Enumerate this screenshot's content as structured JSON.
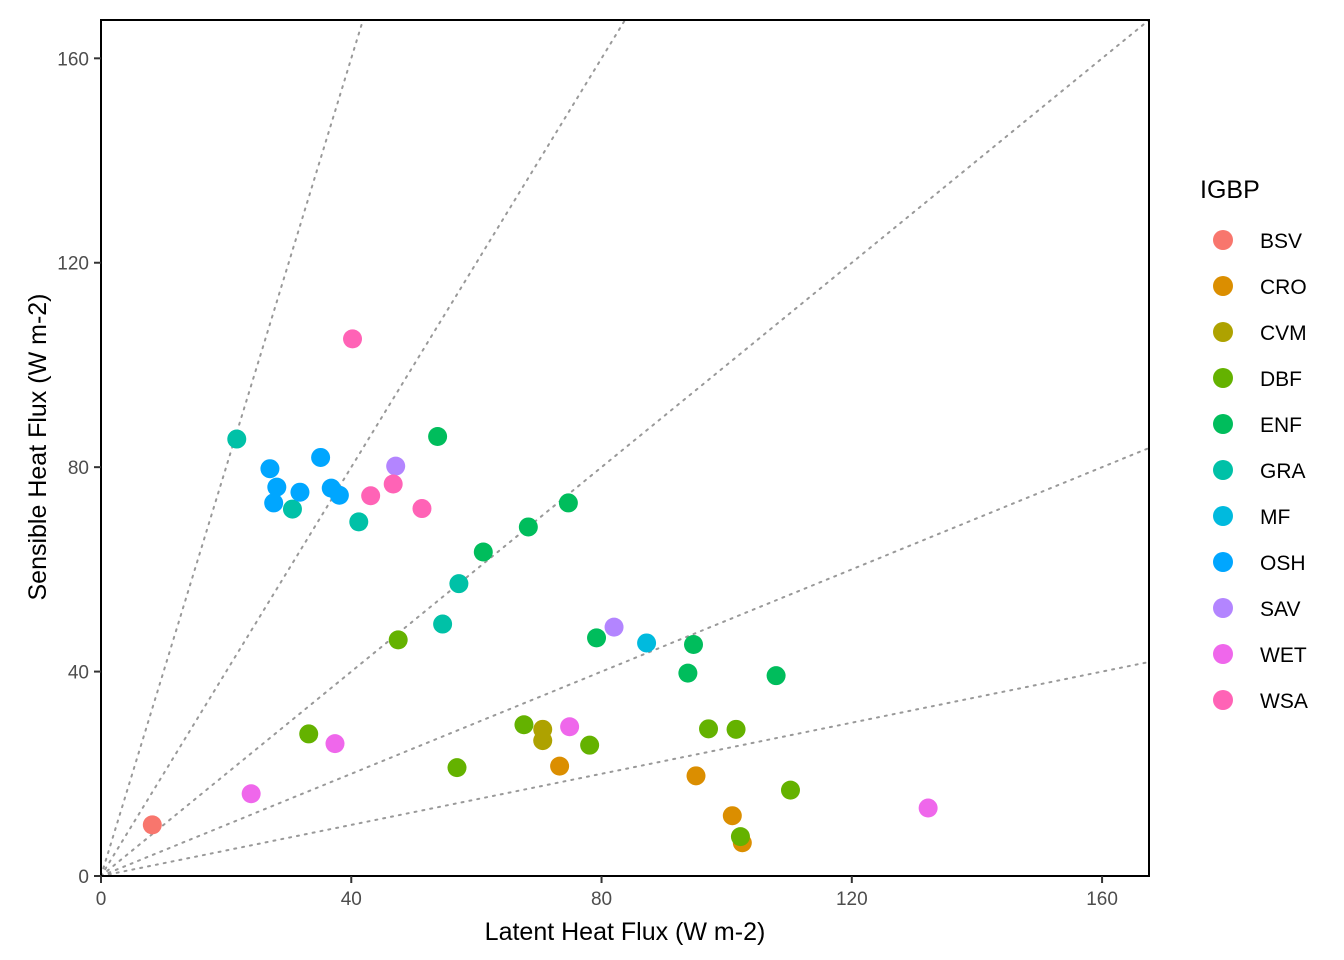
{
  "chart_data": {
    "type": "scatter",
    "xlabel": "Latent Heat Flux (W m-2)",
    "ylabel": "Sensible Heat Flux (W m-2)",
    "xlim": [
      0,
      167.5
    ],
    "ylim": [
      0,
      167.5
    ],
    "x_ticks": [
      0,
      40,
      80,
      120,
      160
    ],
    "y_ticks": [
      0,
      40,
      80,
      120,
      160
    ],
    "grid": false,
    "legend": {
      "title": "IGBP",
      "position": "right"
    },
    "reference_lines": {
      "style": "dotted",
      "color": "#999999",
      "slopes": [
        4,
        2,
        1,
        0.5,
        0.25
      ]
    },
    "series": [
      {
        "name": "BSV",
        "color": "#F8766D",
        "points": [
          [
            8.2,
            10
          ]
        ]
      },
      {
        "name": "CRO",
        "color": "#DB8E00",
        "points": [
          [
            73.3,
            21.5
          ],
          [
            95.1,
            19.6
          ],
          [
            100.9,
            11.8
          ],
          [
            102.5,
            6.5
          ]
        ]
      },
      {
        "name": "CVM",
        "color": "#AEA200",
        "points": [
          [
            70.6,
            28.7
          ],
          [
            70.6,
            26.5
          ]
        ]
      },
      {
        "name": "DBF",
        "color": "#64B200",
        "points": [
          [
            47.5,
            46.2
          ],
          [
            33.2,
            27.8
          ],
          [
            56.9,
            21.2
          ],
          [
            67.6,
            29.6
          ],
          [
            78.1,
            25.6
          ],
          [
            97.1,
            28.8
          ],
          [
            101.5,
            28.7
          ],
          [
            110.2,
            16.8
          ],
          [
            102.2,
            7.7
          ]
        ]
      },
      {
        "name": "ENF",
        "color": "#00BD5C",
        "points": [
          [
            53.8,
            86
          ],
          [
            74.7,
            73
          ],
          [
            68.3,
            68.3
          ],
          [
            61.1,
            63.4
          ],
          [
            79.2,
            46.6
          ],
          [
            94.7,
            45.3
          ],
          [
            93.8,
            39.7
          ],
          [
            107.9,
            39.2
          ]
        ]
      },
      {
        "name": "GRA",
        "color": "#00C1A7",
        "points": [
          [
            21.7,
            85.5
          ],
          [
            30.6,
            71.8
          ],
          [
            41.2,
            69.3
          ],
          [
            57.2,
            57.2
          ],
          [
            54.6,
            49.3
          ]
        ]
      },
      {
        "name": "MF",
        "color": "#00BADE",
        "points": [
          [
            87.2,
            45.6
          ]
        ]
      },
      {
        "name": "OSH",
        "color": "#00A6FF",
        "points": [
          [
            27,
            79.7
          ],
          [
            35.1,
            81.9
          ],
          [
            28.1,
            76.1
          ],
          [
            31.8,
            75.1
          ],
          [
            36.8,
            75.9
          ],
          [
            38.1,
            74.5
          ],
          [
            27.6,
            73
          ]
        ]
      },
      {
        "name": "SAV",
        "color": "#B385FF",
        "points": [
          [
            47.1,
            80.2
          ],
          [
            82,
            48.7
          ]
        ]
      },
      {
        "name": "WET",
        "color": "#EF67EB",
        "points": [
          [
            37.4,
            25.9
          ],
          [
            24,
            16.1
          ],
          [
            74.9,
            29.2
          ],
          [
            132.2,
            13.3
          ]
        ]
      },
      {
        "name": "WSA",
        "color": "#FF63B6",
        "points": [
          [
            40.2,
            105.1
          ],
          [
            43.1,
            74.4
          ],
          [
            46.7,
            76.7
          ],
          [
            51.3,
            71.9
          ]
        ]
      }
    ]
  }
}
